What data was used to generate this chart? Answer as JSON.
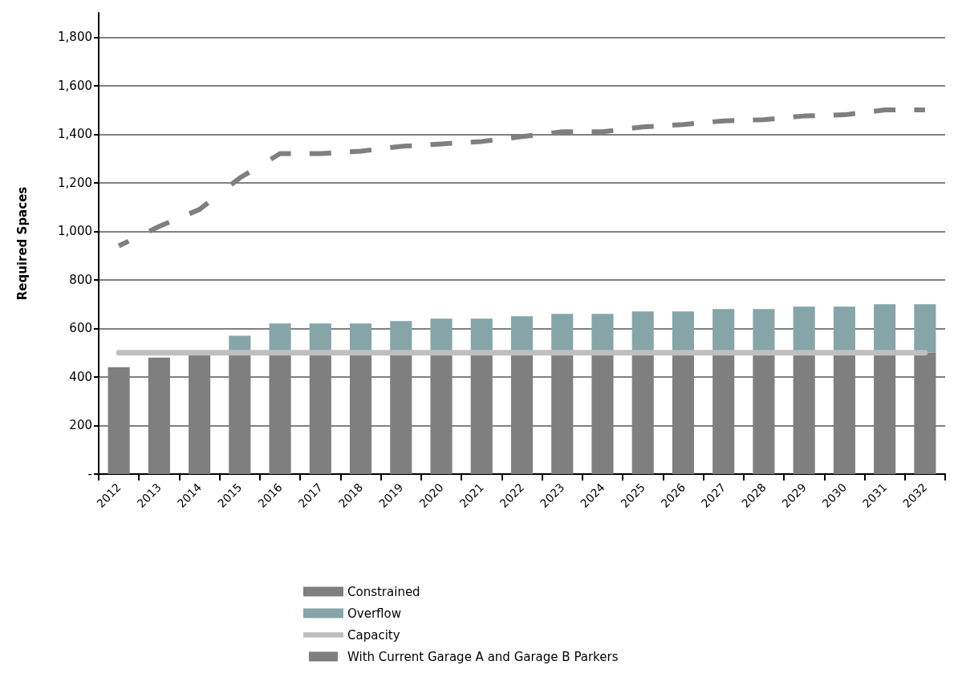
{
  "chart_data": {
    "type": "bar",
    "ylabel": "Required Spaces",
    "stacked": true,
    "grid": "y",
    "legend": "bottom",
    "categories": [
      "2012",
      "2013",
      "2014",
      "2015",
      "2016",
      "2017",
      "2018",
      "2019",
      "2020",
      "2021",
      "2022",
      "2023",
      "2024",
      "2025",
      "2026",
      "2027",
      "2028",
      "2029",
      "2030",
      "2031",
      "2032"
    ],
    "ylim": [
      0,
      1900
    ],
    "yticks": [
      {
        "value": 0,
        "label": "-"
      },
      {
        "value": 200,
        "label": "200"
      },
      {
        "value": 400,
        "label": "400"
      },
      {
        "value": 600,
        "label": "600"
      },
      {
        "value": 800,
        "label": "800"
      },
      {
        "value": 1000,
        "label": "1,000"
      },
      {
        "value": 1200,
        "label": "1,200"
      },
      {
        "value": 1400,
        "label": "1,400"
      },
      {
        "value": 1600,
        "label": "1,600"
      },
      {
        "value": 1800,
        "label": "1,800"
      }
    ],
    "series": [
      {
        "name": "Constrained",
        "color": "#7f7f7f",
        "values": [
          440,
          480,
          500,
          500,
          500,
          500,
          500,
          500,
          500,
          500,
          500,
          500,
          500,
          500,
          500,
          500,
          500,
          500,
          500,
          500,
          500
        ]
      },
      {
        "name": "Overflow",
        "color": "#86a5a9",
        "values": [
          0,
          0,
          0,
          70,
          120,
          120,
          120,
          130,
          140,
          140,
          150,
          160,
          160,
          170,
          170,
          180,
          180,
          190,
          190,
          200,
          200
        ]
      },
      {
        "name": "Capacity",
        "type": "line",
        "marker": "none",
        "color": "#bfbfbf",
        "values": [
          500,
          500,
          500,
          500,
          500,
          500,
          500,
          500,
          500,
          500,
          500,
          500,
          500,
          500,
          500,
          500,
          500,
          500,
          500,
          500,
          500
        ]
      },
      {
        "name": "With Current Garage A and Garage B Parkers",
        "type": "line",
        "marker": "none",
        "line_style": "dashed",
        "color": "#7f7f7f",
        "values": [
          940,
          1020,
          1090,
          1220,
          1320,
          1320,
          1330,
          1350,
          1360,
          1370,
          1390,
          1410,
          1410,
          1430,
          1440,
          1455,
          1460,
          1475,
          1480,
          1500,
          1500
        ]
      }
    ]
  }
}
